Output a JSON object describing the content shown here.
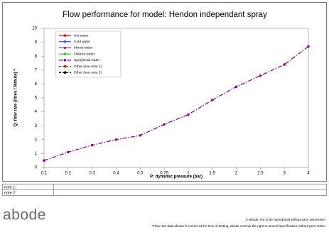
{
  "chart_data": {
    "type": "line",
    "title": "Flow performance for model: Hendon independant spray",
    "x_label": "P: dynamic pressure (bar)",
    "y_label": "Q: flow rate (litres / Minute) *",
    "categories": [
      "0.1",
      "0.2",
      "0.3",
      "0.4",
      "0.5",
      "0.75",
      "1",
      "1.5",
      "2",
      "2.5",
      "3",
      "4"
    ],
    "ylim": [
      0,
      10
    ],
    "yticks": [
      0,
      1,
      2,
      3,
      4,
      5,
      6,
      7,
      8,
      9,
      10
    ],
    "grid": false,
    "legend": "upper left",
    "series": [
      {
        "name": "Hot water",
        "color": "#ff0000",
        "line_style": "solid",
        "values": [
          null,
          null,
          null,
          null,
          null,
          null,
          null,
          null,
          null,
          null,
          null,
          null
        ]
      },
      {
        "name": "Cold water",
        "color": "#3366ff",
        "line_style": "solid",
        "values": [
          null,
          null,
          null,
          null,
          null,
          null,
          null,
          null,
          null,
          null,
          null,
          null
        ]
      },
      {
        "name": "Mixed water",
        "color": "#993399",
        "line_style": "solid",
        "values": [
          null,
          null,
          null,
          null,
          null,
          null,
          null,
          null,
          null,
          null,
          null,
          null
        ]
      },
      {
        "name": "Filtered water",
        "color": "#33cc33",
        "line_style": "solid",
        "values": [
          null,
          null,
          null,
          null,
          null,
          null,
          null,
          null,
          null,
          null,
          null,
          null
        ]
      },
      {
        "name": "Sprayhead water",
        "color": "#8b0a8b",
        "line_style": "dashdot",
        "values": [
          0.5,
          1.1,
          1.6,
          2.0,
          2.3,
          3.1,
          3.8,
          4.85,
          5.8,
          6.6,
          7.4,
          8.7
        ]
      },
      {
        "name": "Other (see note 1)",
        "color": "#ff0000",
        "line_style": "dashed",
        "values": [
          null,
          null,
          null,
          null,
          null,
          null,
          null,
          null,
          null,
          null,
          null,
          null
        ]
      },
      {
        "name": "Other (see note 2)",
        "color": "#000000",
        "line_style": "dashed",
        "values": [
          null,
          null,
          null,
          null,
          null,
          null,
          null,
          null,
          null,
          null,
          null,
          null
        ]
      }
    ]
  },
  "notes": {
    "note1": "note 1:",
    "note2": "note 2:"
  },
  "footer": {
    "logo": "abode",
    "copyright": "© abode, not to be reproduced without prior permission",
    "disclaimer": "*Flow rate data shown is correct at the time of testing, abode reserve the right to amend specification without prior notice"
  }
}
